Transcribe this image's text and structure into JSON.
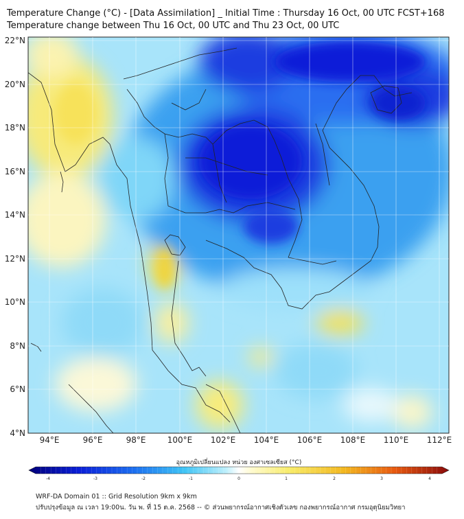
{
  "title_line1": "Temperature Change (°C) - [Data Assimilation] _ Initial Time : Thursday 16 Oct, 00 UTC FCST+168",
  "title_line2": "Temperature change between Thu 16 Oct, 00 UTC and Thu 23 Oct, 00 UTC",
  "map": {
    "lat_ticks": [
      "22°N",
      "20°N",
      "18°N",
      "16°N",
      "14°N",
      "12°N",
      "10°N",
      "8°N",
      "6°N",
      "4°N"
    ],
    "lon_ticks": [
      "94°E",
      "96°E",
      "98°E",
      "100°E",
      "102°E",
      "104°E",
      "106°E",
      "108°E",
      "110°E",
      "112°E"
    ],
    "lat_range": [
      4,
      22.3
    ],
    "lon_range": [
      93,
      112.5
    ]
  },
  "colorbar": {
    "label": "อุณหภูมิเปลี่ยนแปลง หน่วย องศาเซลเซียส (°C)",
    "ticks": [
      "-4",
      "-3",
      "-2",
      "-1",
      "0",
      "1",
      "2",
      "3",
      "4"
    ],
    "range": [
      -4,
      4
    ]
  },
  "footer_line1": "WRF-DA Domain 01 :: Grid Resolution 9km x 9km",
  "footer_line2": "ปรับปรุงข้อมูล ณ เวลา 19:00น. วัน พ. ที่ 15 ต.ค. 2568 -- © ส่วนพยากรณ์อากาศเชิงตัวเลข กองพยากรณ์อากาศ กรมอุตุนิยมวิทยา",
  "colors": {
    "strong_cooling": "#0a1fd8",
    "moderate_cooling": "#3aa0f0",
    "mild_cooling": "#a8e4fa",
    "warming": "#f5e25a"
  }
}
